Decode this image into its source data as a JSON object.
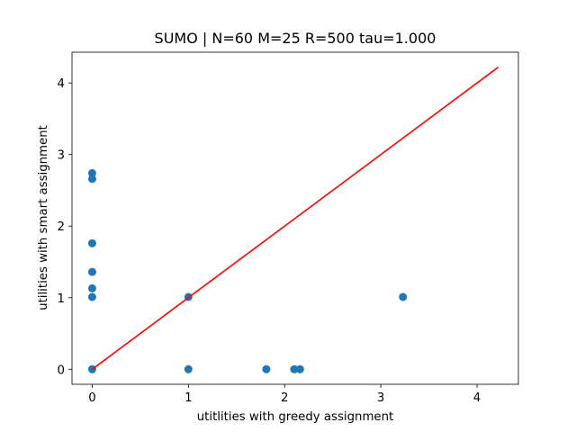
{
  "chart_data": {
    "type": "scatter",
    "title": "SUMO | N=60 M=25 R=500 tau=1.000",
    "xlabel": "utitlities with greedy assignment",
    "ylabel": "utilities with smart assignment",
    "xlim": [
      -0.21,
      4.43
    ],
    "ylim": [
      -0.21,
      4.43
    ],
    "xticks": [
      0,
      1,
      2,
      3,
      4
    ],
    "yticks": [
      0,
      1,
      2,
      3,
      4
    ],
    "xtick_labels": [
      "0",
      "1",
      "2",
      "3",
      "4"
    ],
    "ytick_labels": [
      "0",
      "1",
      "2",
      "3",
      "4"
    ],
    "grid": false,
    "series": [
      {
        "color": "#1f77b4",
        "marker": "circle",
        "points": [
          {
            "x": 0,
            "y": 0
          },
          {
            "x": 0,
            "y": 2.74
          },
          {
            "x": 0,
            "y": 2.66
          },
          {
            "x": 0,
            "y": 1.76
          },
          {
            "x": 0,
            "y": 1.36
          },
          {
            "x": 0,
            "y": 1.13
          },
          {
            "x": 0,
            "y": 1.01
          },
          {
            "x": 1.0,
            "y": 1.01
          },
          {
            "x": 1.0,
            "y": 0
          },
          {
            "x": 1.81,
            "y": 0
          },
          {
            "x": 2.1,
            "y": 0
          },
          {
            "x": 2.16,
            "y": 0
          },
          {
            "x": 3.23,
            "y": 1.01
          }
        ]
      }
    ],
    "reference_line": {
      "color": "#ff0000",
      "from": [
        0,
        0
      ],
      "to": [
        4.22,
        4.22
      ]
    }
  }
}
